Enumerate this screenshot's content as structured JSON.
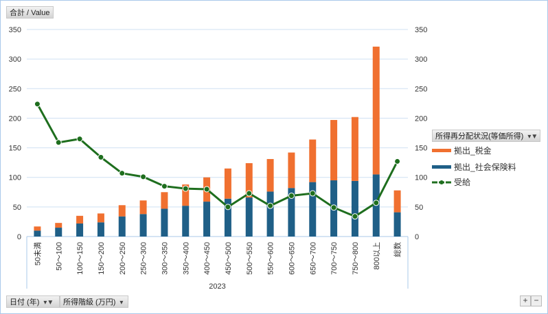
{
  "value_button": "合計 / Value",
  "filters": {
    "date": "日付 (年)",
    "bracket": "所得階級 (万円)"
  },
  "legend": {
    "title": "所得再分配状況(等価所得)",
    "items": [
      "拠出_税金",
      "拠出_社会保険料",
      "受給"
    ]
  },
  "zoom": {
    "plus": "+",
    "minus": "−"
  },
  "colors": {
    "tax": "#f07030",
    "social": "#1f5f87",
    "benefit": "#1e6e1e"
  },
  "chart_data": {
    "type": "bar",
    "stacked": true,
    "categories": [
      "50未満",
      "50～100",
      "100～150",
      "150～200",
      "200～250",
      "250～300",
      "300～350",
      "350～400",
      "400～450",
      "450～500",
      "500～550",
      "550～600",
      "600～650",
      "650～700",
      "700～750",
      "750～800",
      "800以上",
      "総数"
    ],
    "group_label": "2023",
    "series": [
      {
        "name": "拠出_社会保険料",
        "kind": "bar",
        "values": [
          10,
          15,
          22,
          24,
          34,
          38,
          47,
          52,
          59,
          64,
          66,
          76,
          82,
          92,
          95,
          94,
          105,
          41
        ]
      },
      {
        "name": "拠出_税金",
        "kind": "bar",
        "values": [
          7,
          8,
          13,
          15,
          19,
          23,
          28,
          36,
          41,
          51,
          58,
          55,
          60,
          72,
          102,
          108,
          216,
          37
        ]
      },
      {
        "name": "受給",
        "kind": "line",
        "values": [
          224,
          159,
          165,
          134,
          107,
          101,
          85,
          81,
          80,
          50,
          73,
          52,
          69,
          73,
          49,
          34,
          57,
          127
        ]
      }
    ],
    "yticks": [
      "0",
      "50",
      "100",
      "150",
      "200",
      "250",
      "300",
      "350"
    ],
    "ylim": [
      0,
      350
    ],
    "grid": true,
    "legend_position": "right"
  }
}
